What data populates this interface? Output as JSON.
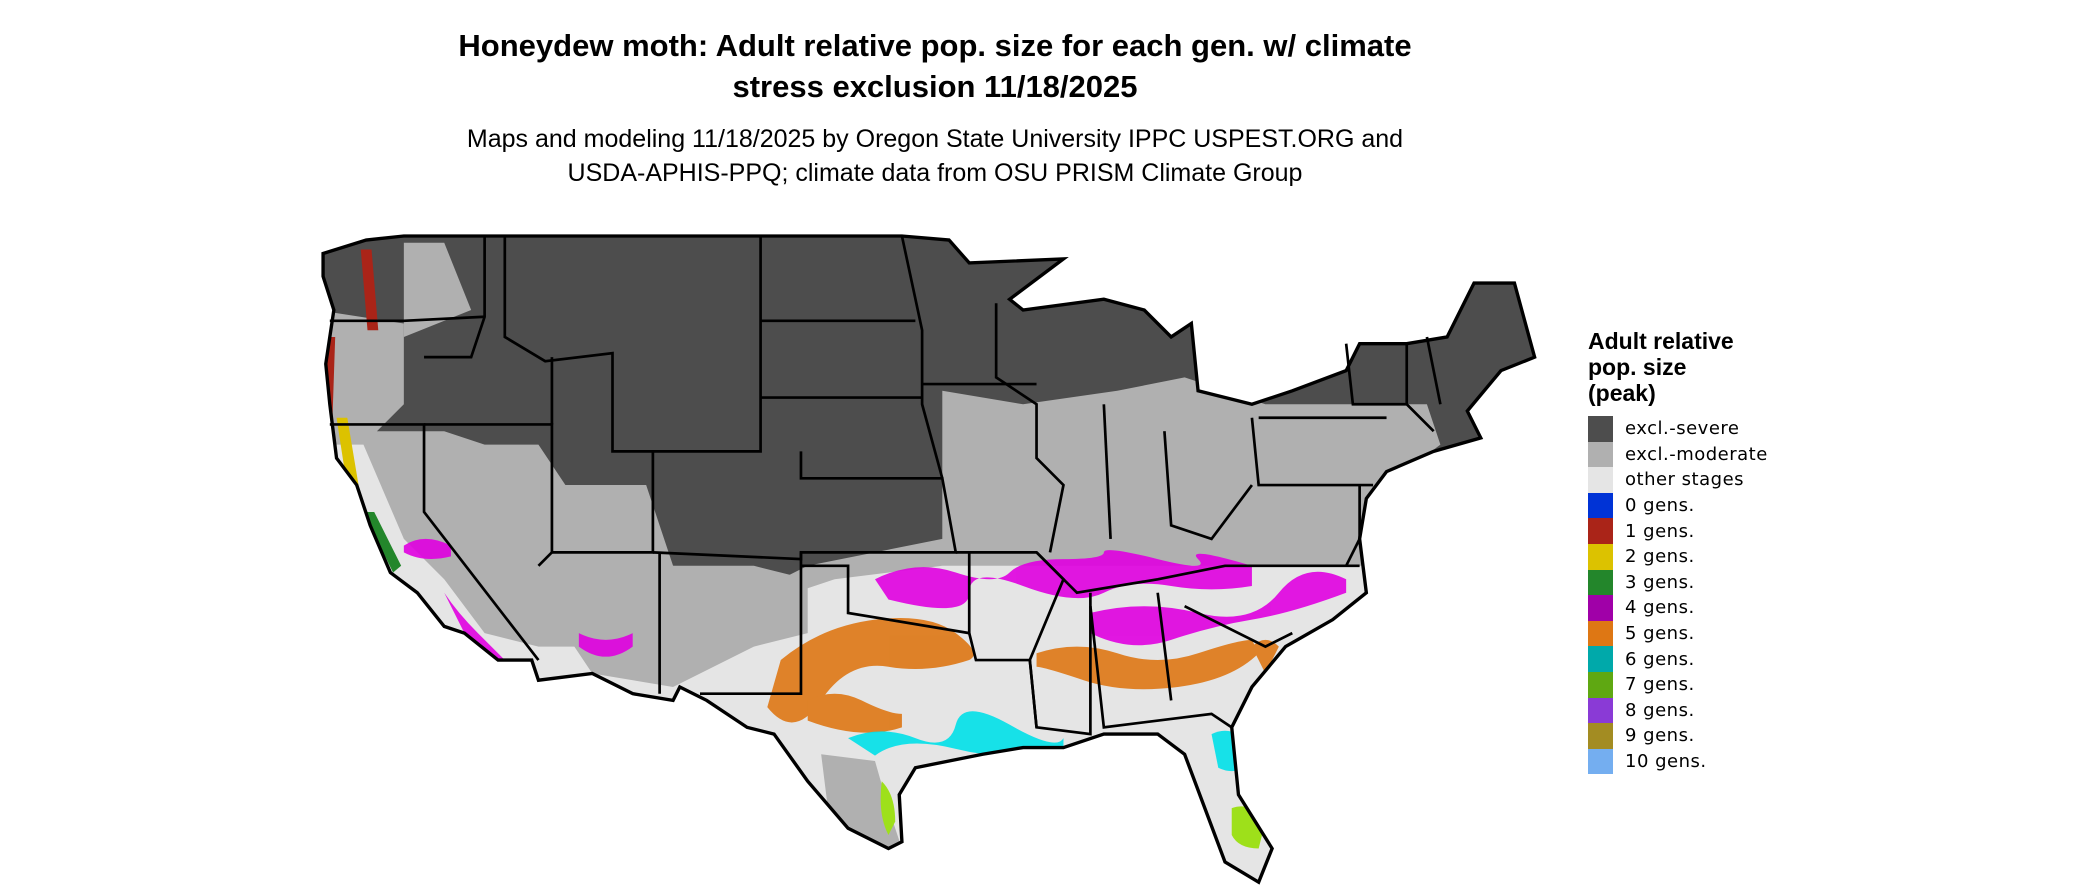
{
  "title": {
    "line1": "Honeydew moth: Adult relative pop. size for each gen. w/ climate",
    "line2": "stress exclusion 11/18/2025"
  },
  "subtitle": {
    "line1": "Maps and modeling 11/18/2025 by Oregon State University IPPC USPEST.ORG and",
    "line2": "USDA-APHIS-PPQ; climate data from OSU PRISM Climate Group"
  },
  "legend": {
    "title_lines": [
      "Adult relative",
      "pop. size",
      "(peak)"
    ],
    "items": [
      {
        "label": "excl.-severe",
        "color": "#4d4d4d"
      },
      {
        "label": "excl.-moderate",
        "color": "#b0b0b0"
      },
      {
        "label": "other stages",
        "color": "#e5e5e5"
      },
      {
        "label": "0 gens.",
        "color": "#0033d6"
      },
      {
        "label": "1 gens.",
        "color": "#aa2418"
      },
      {
        "label": "2 gens.",
        "color": "#dcc200"
      },
      {
        "label": "3 gens.",
        "color": "#23862b"
      },
      {
        "label": "4 gens.",
        "color": "#a000a8"
      },
      {
        "label": "5 gens.",
        "color": "#de7714"
      },
      {
        "label": "6 gens.",
        "color": "#00a9aa"
      },
      {
        "label": "7 gens.",
        "color": "#5fa812"
      },
      {
        "label": "8 gens.",
        "color": "#8a3ad6"
      },
      {
        "label": "9 gens.",
        "color": "#a38c22"
      },
      {
        "label": "10 gens.",
        "color": "#74aef0"
      }
    ]
  },
  "map_colors": {
    "magenta_band": "#e000e0",
    "cyan_band": "#00e0e8",
    "light_green": "#9ee01a",
    "border": "#000000"
  }
}
